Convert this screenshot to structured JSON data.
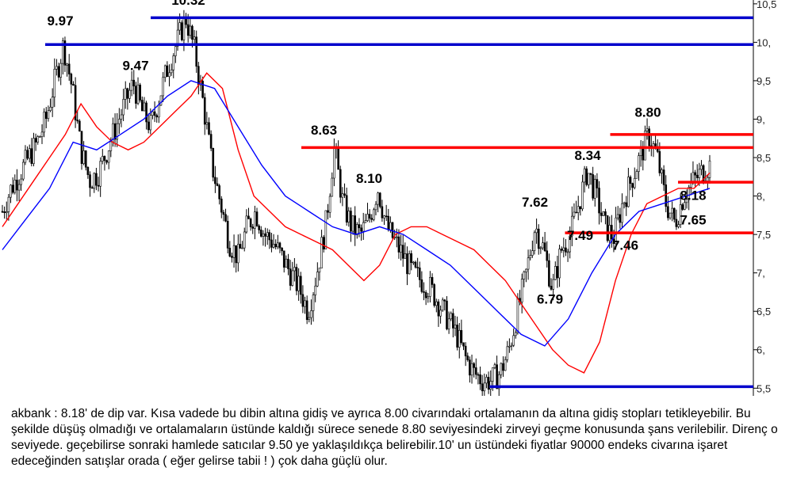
{
  "chart_data": {
    "type": "candlestick",
    "title": "",
    "ylim": [
      5.4,
      10.55
    ],
    "yticks": [
      "10,5",
      "10,",
      "9,5",
      "9,",
      "8,5",
      "8,",
      "7,5",
      "7,",
      "6,5",
      "6,",
      "5,5"
    ],
    "ytick_values": [
      10.5,
      10,
      9.5,
      9,
      8.5,
      8,
      7.5,
      7,
      6.5,
      6,
      5.5
    ],
    "series": [
      {
        "role": "price",
        "values": [
          7.8,
          8.1,
          8.3,
          8.5,
          8.7,
          9.0,
          9.5,
          9.97,
          9.4,
          8.6,
          8.2,
          8.3,
          8.6,
          8.9,
          9.2,
          9.47,
          9.1,
          8.9,
          9.3,
          9.7,
          10.0,
          10.32,
          9.9,
          9.2,
          8.4,
          7.9,
          7.4,
          7.2,
          7.6,
          7.8,
          7.5,
          7.4,
          7.2,
          7.0,
          6.8,
          6.5,
          7.0,
          7.6,
          8.63,
          7.9,
          7.6,
          7.5,
          7.7,
          8.1,
          7.6,
          7.4,
          7.2,
          7.0,
          6.9,
          6.8,
          6.6,
          6.4,
          6.2,
          5.9,
          5.7,
          5.6,
          5.6,
          5.7,
          6.0,
          6.5,
          7.0,
          7.62,
          7.3,
          6.79,
          7.3,
          7.49,
          7.9,
          8.34,
          8.0,
          7.6,
          7.46,
          7.9,
          8.2,
          8.5,
          8.8,
          8.5,
          7.9,
          7.65,
          8.0,
          8.18,
          8.3,
          8.4
        ]
      },
      {
        "role": "short-average",
        "color": "#ff0000",
        "values": [
          7.6,
          7.9,
          8.2,
          8.5,
          8.8,
          9.2,
          8.9,
          8.7,
          8.6,
          8.7,
          8.9,
          9.1,
          9.3,
          9.6,
          9.4,
          8.6,
          8.0,
          7.8,
          7.6,
          7.5,
          7.4,
          7.3,
          7.1,
          6.9,
          7.1,
          7.5,
          7.6,
          7.6,
          7.5,
          7.4,
          7.3,
          7.1,
          6.9,
          6.6,
          6.3,
          6.0,
          5.8,
          5.7,
          6.1,
          6.9,
          7.5,
          7.9,
          8.0,
          8.1,
          8.1,
          8.3
        ]
      },
      {
        "role": "long-average",
        "color": "#0000ff",
        "values": [
          7.3,
          7.7,
          8.1,
          8.7,
          8.6,
          8.8,
          9.0,
          9.3,
          9.5,
          9.4,
          8.9,
          8.4,
          8.0,
          7.8,
          7.6,
          7.5,
          7.6,
          7.5,
          7.3,
          7.1,
          6.8,
          6.5,
          6.2,
          6.05,
          6.4,
          7.0,
          7.5,
          7.8,
          7.9,
          8.0,
          8.1
        ]
      }
    ],
    "resistance_lines": [
      {
        "value": 10.32,
        "color": "#0000cc",
        "xstart": 0.2
      },
      {
        "value": 9.97,
        "color": "#0000cc",
        "xstart": 0.06
      },
      {
        "value": 8.8,
        "color": "#ff0000",
        "xstart": 0.81
      },
      {
        "value": 8.63,
        "color": "#ff0000",
        "xstart": 0.4
      },
      {
        "value": 8.18,
        "color": "#ff0000",
        "xstart": 0.9
      }
    ],
    "support_lines": [
      {
        "value": 7.52,
        "color": "#ff0000",
        "xstart": 0.75
      },
      {
        "value": 5.52,
        "color": "#0000cc",
        "xstart": 0.65
      }
    ],
    "annotations": [
      {
        "text": "9.97",
        "x": 0.08,
        "y": 10.22
      },
      {
        "text": "10.32",
        "x": 0.25,
        "y": 10.49
      },
      {
        "text": "9.47",
        "x": 0.18,
        "y": 9.64
      },
      {
        "text": "8.63",
        "x": 0.43,
        "y": 8.8
      },
      {
        "text": "8.10",
        "x": 0.49,
        "y": 8.17
      },
      {
        "text": "7.62",
        "x": 0.71,
        "y": 7.86
      },
      {
        "text": "7.49",
        "x": 0.77,
        "y": 7.43
      },
      {
        "text": "8.34",
        "x": 0.78,
        "y": 8.47
      },
      {
        "text": "8.80",
        "x": 0.86,
        "y": 9.03
      },
      {
        "text": "8.18",
        "x": 0.92,
        "y": 7.95
      },
      {
        "text": "7.65",
        "x": 0.92,
        "y": 7.63
      },
      {
        "text": "7.46",
        "x": 0.83,
        "y": 7.3
      },
      {
        "text": "6.79",
        "x": 0.73,
        "y": 6.6
      }
    ]
  },
  "commentary": "akbank : 8.18' de dip var. Kısa vadede bu dibin altına gidiş ve ayrıca 8.00 civarındaki ortalamanın da altına gidiş stopları tetikleyebilir. Bu şekilde düşüş olmadığı ve ortalamaların üstünde kaldığı sürece senede 8.80 seviyesindeki zirveyi geçme konusunda şans verilebilir. Direnç o seviyede. geçebilirse sonraki hamlede satıcılar 9.50 ye yaklaşıldıkça belirebilir.10' un üstündeki fiyatlar 90000 endeks civarına işaret edeceğinden satışlar orada ( eğer gelirse tabii ! ) çok daha güçlü olur."
}
